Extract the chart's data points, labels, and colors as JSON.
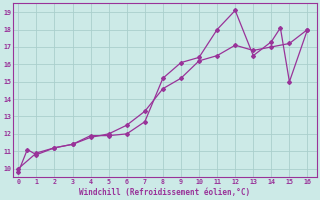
{
  "xlabel": "Windchill (Refroidissement éolien,°C)",
  "bg_color": "#cceae7",
  "grid_color": "#aacfcc",
  "line_color": "#993399",
  "x_zigzag": [
    0,
    0.5,
    1,
    2,
    3,
    4,
    5,
    6,
    7,
    8,
    9,
    10,
    11,
    12,
    13,
    14,
    14.5,
    15,
    16
  ],
  "y_zigzag": [
    9.8,
    11.1,
    10.8,
    11.2,
    11.4,
    11.9,
    11.9,
    12.0,
    12.7,
    15.2,
    16.1,
    16.4,
    18.0,
    19.1,
    16.5,
    17.3,
    18.1,
    15.0,
    18.0
  ],
  "x_smooth": [
    0,
    1,
    2,
    3,
    4,
    5,
    6,
    7,
    8,
    9,
    10,
    11,
    12,
    13,
    14,
    15,
    16
  ],
  "y_smooth": [
    10.0,
    10.9,
    11.2,
    11.4,
    11.8,
    12.0,
    12.5,
    13.3,
    14.6,
    15.2,
    16.2,
    16.5,
    17.1,
    16.8,
    17.0,
    17.2,
    18.0
  ],
  "xlim": [
    -0.3,
    16.5
  ],
  "ylim": [
    9.5,
    19.5
  ],
  "xticks": [
    0,
    1,
    2,
    3,
    4,
    5,
    6,
    7,
    8,
    9,
    10,
    11,
    12,
    13,
    14,
    15,
    16
  ],
  "yticks": [
    10,
    11,
    12,
    13,
    14,
    15,
    16,
    17,
    18,
    19
  ]
}
